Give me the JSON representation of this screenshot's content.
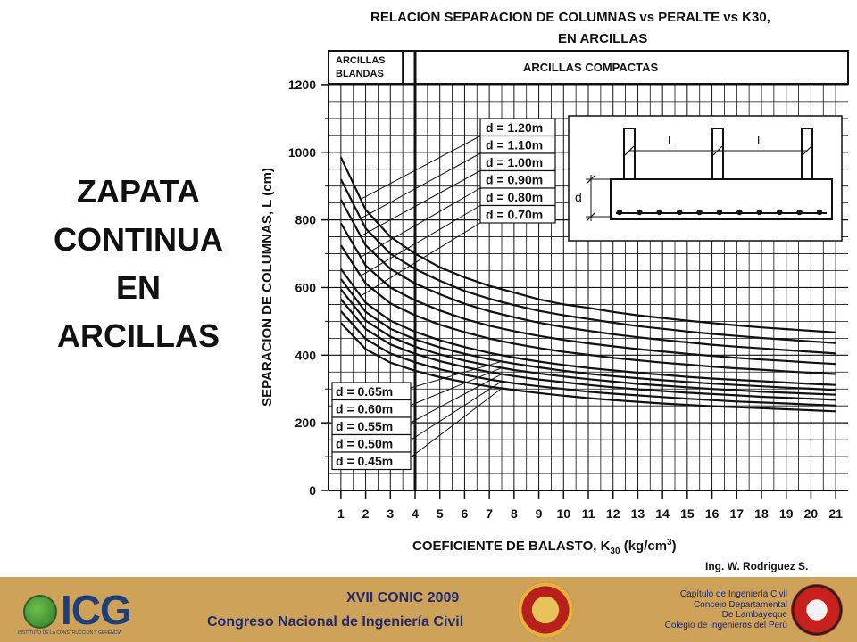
{
  "slide": {
    "title_lines": [
      "ZAPATA",
      "CONTINUA",
      "EN",
      "ARCILLAS"
    ]
  },
  "chart_data": {
    "type": "line",
    "title": "RELACION SEPARACION DE COLUMNAS vs PERALTE vs K30, EN ARCILLAS",
    "title_lines": [
      "RELACION SEPARACION DE COLUMNAS vs PERALTE vs K30,",
      "EN ARCILLAS"
    ],
    "xlabel": "COEFICIENTE DE BALASTO, K30 (kg/cm3)",
    "ylabel": "SEPARACION DE COLUMNAS, L (cm)",
    "xlim": [
      0.5,
      21.5
    ],
    "ylim": [
      0,
      1300
    ],
    "x_ticks": [
      "1",
      "2",
      "3",
      "4",
      "5",
      "6",
      "7",
      "8",
      "9",
      "10",
      "11",
      "12",
      "13",
      "14",
      "15",
      "16",
      "17",
      "18",
      "19",
      "20",
      "21"
    ],
    "y_ticks": [
      0,
      200,
      400,
      600,
      800,
      1000,
      1200
    ],
    "grid": true,
    "zones": {
      "soft": "ARCILLAS\nBLANDAS",
      "compact": "ARCILLAS COMPACTAS",
      "boundary_x": 4
    },
    "zone_soft_lines": [
      "ARCILLAS",
      "BLANDAS"
    ],
    "zone_compact": "ARCILLAS COMPACTAS",
    "legend_top": [
      "d = 1.20m",
      "d = 1.10m",
      "d = 1.00m",
      "d = 0.90m",
      "d = 0.80m",
      "d = 0.70m"
    ],
    "legend_bottom": [
      "d = 0.65m",
      "d = 0.60m",
      "d = 0.55m",
      "d = 0.50m",
      "d = 0.45m"
    ],
    "inset_labels": {
      "span": "L",
      "depth": "d"
    },
    "credit": "Ing. W. Rodriguez S.",
    "x": [
      1,
      2,
      3,
      4,
      5,
      6,
      7,
      8,
      9,
      10,
      11,
      12,
      13,
      14,
      15,
      16,
      17,
      18,
      19,
      20,
      21
    ],
    "series": [
      {
        "name": "d = 1.20m",
        "values": [
          985,
          830,
          750,
          700,
          660,
          630,
          605,
          585,
          565,
          550,
          540,
          528,
          518,
          510,
          502,
          495,
          488,
          482,
          477,
          472,
          467
        ]
      },
      {
        "name": "d = 1.10m",
        "values": [
          920,
          775,
          700,
          655,
          620,
          590,
          567,
          548,
          531,
          518,
          507,
          496,
          486,
          478,
          470,
          463,
          457,
          451,
          446,
          441,
          436
        ]
      },
      {
        "name": "d = 1.00m",
        "values": [
          860,
          725,
          655,
          612,
          580,
          552,
          530,
          512,
          496,
          483,
          472,
          462,
          453,
          445,
          438,
          431,
          425,
          420,
          415,
          410,
          405
        ]
      },
      {
        "name": "d = 0.90m",
        "values": [
          790,
          665,
          600,
          562,
          532,
          507,
          487,
          471,
          457,
          445,
          435,
          426,
          418,
          411,
          404,
          398,
          392,
          387,
          383,
          378,
          374
        ]
      },
      {
        "name": "d = 0.80m",
        "values": [
          725,
          612,
          553,
          518,
          490,
          468,
          449,
          434,
          421,
          410,
          401,
          392,
          385,
          378,
          372,
          366,
          361,
          357,
          352,
          348,
          344
        ]
      },
      {
        "name": "d = 0.70m",
        "values": [
          655,
          555,
          502,
          469,
          444,
          424,
          407,
          393,
          381,
          371,
          362,
          355,
          348,
          342,
          336,
          331,
          327,
          323,
          319,
          315,
          312
        ]
      },
      {
        "name": "d = 0.65m",
        "values": [
          625,
          528,
          478,
          447,
          423,
          404,
          388,
          375,
          364,
          354,
          345,
          338,
          332,
          326,
          321,
          316,
          312,
          308,
          304,
          301,
          297
        ]
      },
      {
        "name": "d = 0.60m",
        "values": [
          595,
          502,
          455,
          425,
          402,
          384,
          369,
          356,
          346,
          337,
          329,
          322,
          315,
          310,
          305,
          300,
          296,
          292,
          289,
          286,
          283
        ]
      },
      {
        "name": "d = 0.55m",
        "values": [
          565,
          477,
          432,
          404,
          382,
          365,
          350,
          338,
          328,
          320,
          312,
          305,
          299,
          294,
          289,
          285,
          281,
          277,
          274,
          271,
          268
        ]
      },
      {
        "name": "d = 0.50m",
        "values": [
          530,
          448,
          405,
          379,
          358,
          342,
          328,
          317,
          308,
          300,
          292,
          286,
          281,
          276,
          271,
          267,
          263,
          260,
          257,
          254,
          251
        ]
      },
      {
        "name": "d = 0.45m",
        "values": [
          495,
          418,
          378,
          354,
          335,
          320,
          307,
          297,
          288,
          280,
          273,
          267,
          262,
          257,
          253,
          249,
          246,
          243,
          240,
          237,
          234
        ]
      }
    ]
  },
  "footer": {
    "logo_name": "ICG",
    "logo_sub": "INSTITUTO DE LA CONSTRUCCIÓN Y GERENCIA",
    "event_name": "XVII  CONIC 2009",
    "event_sub": "Congreso Nacional de Ingeniería Civil",
    "chapter_lines": [
      "Capítulo de Ingeniería Civil",
      "Consejo Departamental",
      "De Lambayeque",
      "Colegio de Ingenieros del Perú"
    ],
    "bar_color": "#cfa25a",
    "text_color": "#1f2b6b"
  }
}
